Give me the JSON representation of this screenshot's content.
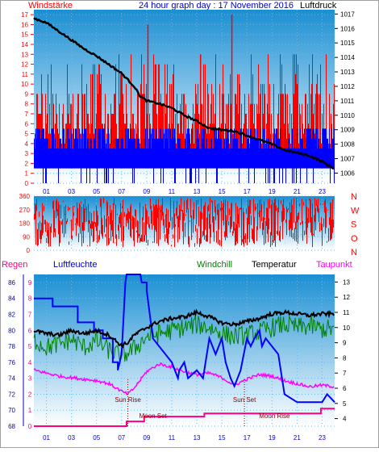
{
  "header": {
    "left_label": "Windstärke",
    "title": "24 hour graph day : 17 November 2016",
    "right_label": "Luftdruck"
  },
  "colors": {
    "wind_red": "#ff0000",
    "wind_blue": "#0000ff",
    "pressure": "#000000",
    "chill": "#008000",
    "temp": "#000000",
    "hum": "#0000ff",
    "dew": "#ff00ff",
    "rain": "#ff0080",
    "axis_blue": "#0000cc"
  },
  "x_ticks": [
    "01",
    "03",
    "05",
    "07",
    "09",
    "11",
    "13",
    "15",
    "17",
    "19",
    "21",
    "23"
  ],
  "chart_data": [
    {
      "type": "line",
      "name": "wind_pressure",
      "y_left": {
        "label": "Windstärke",
        "ticks": [
          0,
          1,
          2,
          3,
          4,
          5,
          6,
          7,
          8,
          9,
          10,
          11,
          12,
          13,
          14,
          15,
          16,
          17
        ],
        "ylim": [
          0,
          17.5
        ]
      },
      "y_right": {
        "label": "Luftdruck",
        "ticks": [
          1006,
          1007,
          1008,
          1009,
          1010,
          1011,
          1012,
          1013,
          1014,
          1015,
          1016,
          1017
        ],
        "ylim": [
          1005.3,
          1017.3
        ]
      },
      "series": [
        {
          "name": "Luftdruck",
          "axis": "right",
          "x": [
            0,
            1,
            2,
            3,
            4,
            5,
            6,
            7,
            8,
            8.5,
            9,
            10,
            11,
            12,
            13,
            14,
            15,
            16,
            17,
            18,
            19,
            20,
            21,
            22,
            23,
            24
          ],
          "values": [
            1016.7,
            1016.4,
            1015.8,
            1015.2,
            1014.6,
            1014.1,
            1013.5,
            1012.9,
            1012.0,
            1011.3,
            1011.0,
            1010.8,
            1010.5,
            1010.0,
            1009.6,
            1009.1,
            1009.0,
            1008.9,
            1008.6,
            1008.3,
            1008.0,
            1007.6,
            1007.4,
            1007.2,
            1006.8,
            1006.3
          ]
        },
        {
          "name": "gust_peaks",
          "axis": "left",
          "x": [
            9.1,
            13.3,
            15.8
          ],
          "values": [
            16,
            13,
            17
          ]
        }
      ]
    },
    {
      "type": "line",
      "name": "wind_direction",
      "y_left": {
        "ticks": [
          0,
          90,
          180,
          270,
          360
        ],
        "ylim": [
          0,
          360
        ]
      },
      "y_right": {
        "ticks": [
          "N",
          "W",
          "S",
          "O",
          "N"
        ]
      }
    },
    {
      "type": "line",
      "name": "climate",
      "legend": [
        "Regen",
        "Luftfeuchte",
        "Windchill",
        "Temperatur",
        "Taupunkt"
      ],
      "y_left": {
        "label": "Luftfeuchte",
        "ticks": [
          68,
          70,
          72,
          74,
          76,
          78,
          80,
          82,
          84,
          86
        ],
        "ylim": [
          68,
          87
        ]
      },
      "y_rain": {
        "label": "Regen",
        "ticks": [
          0,
          1,
          2,
          3,
          4,
          5,
          6,
          7,
          8,
          9
        ],
        "ylim": [
          0,
          9.5
        ]
      },
      "y_right": {
        "ticks": [
          4,
          5,
          6,
          7,
          8,
          9,
          10,
          11,
          12,
          13
        ],
        "ylim": [
          3.5,
          13.5
        ]
      },
      "annotations": [
        {
          "label": "Sun Rise",
          "x": 7.5
        },
        {
          "label": "Moon Set",
          "x": 9.5
        },
        {
          "label": "Sun Set",
          "x": 16.8
        },
        {
          "label": "Moon Rise",
          "x": 19.2
        }
      ],
      "series": [
        {
          "name": "Temperatur",
          "axis": "right",
          "x": [
            0,
            1,
            2,
            3,
            4,
            5,
            6,
            7,
            7.5,
            8,
            9,
            10,
            11,
            12,
            13,
            14,
            15,
            16,
            17,
            18,
            19,
            20,
            21,
            22,
            23,
            24
          ],
          "values": [
            9.8,
            9.6,
            9.5,
            9.8,
            9.6,
            9.8,
            9.5,
            8.8,
            9.0,
            9.5,
            10.0,
            10.4,
            10.6,
            10.7,
            11.0,
            10.7,
            10.3,
            10.2,
            10.4,
            10.6,
            10.9,
            11.0,
            10.9,
            10.8,
            10.9,
            10.9
          ]
        },
        {
          "name": "Windchill",
          "axis": "right",
          "x": [
            0,
            1,
            2,
            3,
            4,
            5,
            6,
            7,
            8,
            9,
            10,
            11,
            12,
            13,
            14,
            15,
            16,
            17,
            18,
            19,
            20,
            21,
            22,
            23,
            24
          ],
          "values": [
            9.2,
            8.7,
            8.9,
            9.2,
            8.7,
            9.1,
            8.5,
            8.1,
            8.6,
            9.4,
            9.6,
            9.8,
            10.0,
            10.2,
            10.0,
            9.6,
            9.4,
            9.5,
            9.7,
            10.0,
            10.2,
            10.0,
            10.1,
            9.9,
            9.9
          ]
        },
        {
          "name": "Taupunkt",
          "axis": "right",
          "x": [
            0,
            1,
            2,
            3,
            4,
            5,
            6,
            7,
            7.5,
            8,
            9,
            10,
            11,
            12,
            13,
            14,
            15,
            16,
            17,
            18,
            19,
            20,
            21,
            22,
            23,
            24
          ],
          "values": [
            7.2,
            7.0,
            6.8,
            6.7,
            6.6,
            6.5,
            6.3,
            5.8,
            5.6,
            6.0,
            7.1,
            7.6,
            7.4,
            7.1,
            6.9,
            7.0,
            6.7,
            6.2,
            6.6,
            6.9,
            6.8,
            6.5,
            6.3,
            6.1,
            6.2,
            6.1
          ]
        },
        {
          "name": "Luftfeuchte",
          "axis": "left",
          "x": [
            0,
            1,
            1.5,
            1.5,
            3.5,
            3.5,
            4.8,
            4.8,
            5.5,
            5.5,
            6.3,
            6.3,
            6.7,
            6.7,
            7.0,
            7.3,
            7.4,
            8.5,
            8.6,
            9.0,
            9.0,
            9.5,
            10,
            11,
            11.5,
            11.6,
            12,
            12.3,
            13,
            13.5,
            14,
            14.5,
            15,
            15.3,
            15.7,
            16,
            16.5,
            17,
            17.3,
            17.6,
            18,
            18.2,
            18.5,
            19,
            19.5,
            20,
            21,
            22,
            23,
            23.4,
            24
          ],
          "values": [
            84,
            84,
            84,
            83,
            83,
            81,
            81,
            80,
            80,
            79,
            79,
            76,
            76,
            75,
            77,
            86,
            87,
            87,
            86,
            86,
            85,
            79,
            78,
            76,
            74,
            75,
            76,
            74,
            75,
            74,
            79,
            77,
            79,
            76,
            74,
            73,
            75,
            79,
            78,
            79,
            80,
            78,
            79,
            78,
            77,
            72,
            71,
            71,
            71,
            72,
            71
          ]
        },
        {
          "name": "Regen",
          "axis": "rain",
          "x": [
            0,
            7.4,
            7.4,
            8.8,
            8.8,
            13.6,
            13.6,
            22.9,
            22.9,
            24
          ],
          "values": [
            0,
            0,
            0.3,
            0.3,
            0.6,
            0.6,
            0.8,
            0.8,
            1.1,
            1.1
          ]
        }
      ]
    }
  ]
}
